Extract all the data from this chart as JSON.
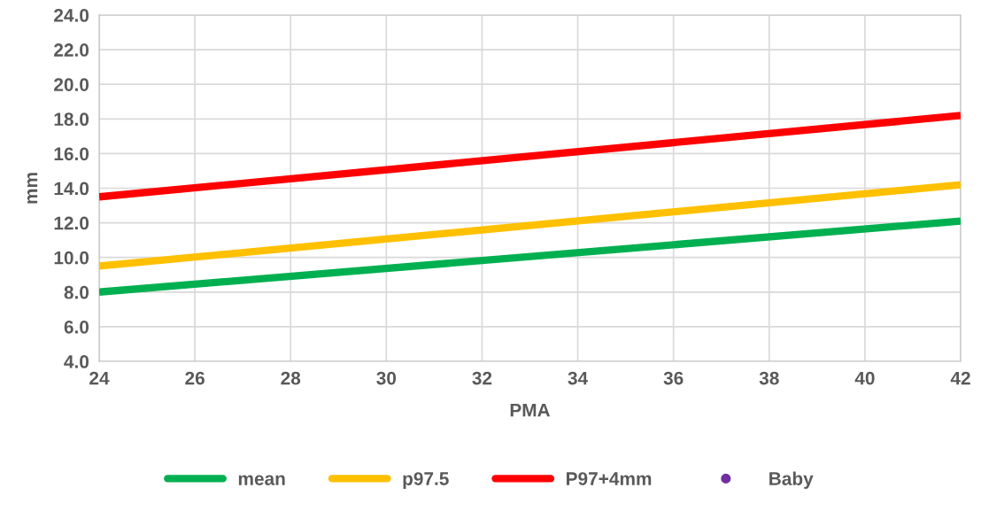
{
  "chart_data": {
    "type": "line",
    "xlabel": "PMA",
    "ylabel": "mm",
    "x": [
      24,
      42
    ],
    "series": [
      {
        "name": "mean",
        "color": "#00b050",
        "values": [
          8.0,
          12.1
        ]
      },
      {
        "name": "p97.5",
        "color": "#ffc000",
        "values": [
          9.5,
          14.2
        ]
      },
      {
        "name": "P97+4mm",
        "color": "#ff0000",
        "values": [
          13.5,
          18.2
        ]
      },
      {
        "name": "Baby",
        "color": "#7030a0",
        "type": "scatter",
        "values": [
          null,
          null
        ]
      }
    ],
    "xlim": [
      24,
      42
    ],
    "xticks": [
      24,
      26,
      28,
      30,
      32,
      34,
      36,
      38,
      40,
      42
    ],
    "ylim": [
      4,
      24
    ],
    "yticks": [
      {
        "value": 4,
        "label": "4.0"
      },
      {
        "value": 6,
        "label": "6.0"
      },
      {
        "value": 8,
        "label": "8.0"
      },
      {
        "value": 10,
        "label": "10.0"
      },
      {
        "value": 12,
        "label": "12.0"
      },
      {
        "value": 14,
        "label": "14.0"
      },
      {
        "value": 16,
        "label": "16.0"
      },
      {
        "value": 18,
        "label": "18.0"
      },
      {
        "value": 20,
        "label": "20.0"
      },
      {
        "value": 22,
        "label": "22.0"
      },
      {
        "value": 24,
        "label": "24.0"
      }
    ],
    "grid": true,
    "legend": "bottom",
    "marker": "none",
    "line_style": "solid"
  }
}
